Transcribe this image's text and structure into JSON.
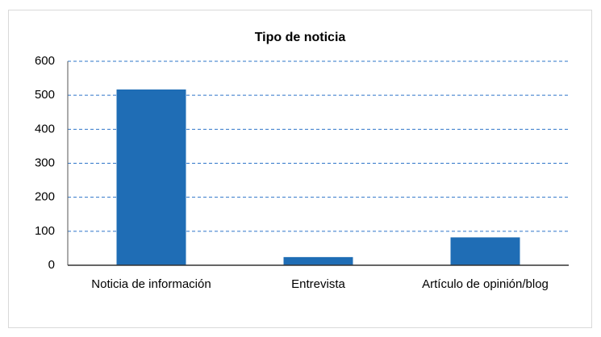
{
  "chart_data": {
    "type": "bar",
    "title": "Tipo de noticia",
    "categories": [
      "Noticia de información",
      "Entrevista",
      "Artículo de opinión/blog"
    ],
    "values": [
      517,
      24,
      82
    ],
    "color": "#1f6db5",
    "ylim": [
      0,
      600
    ],
    "yticks": [
      0,
      100,
      200,
      300,
      400,
      500,
      600
    ],
    "grid": true
  }
}
